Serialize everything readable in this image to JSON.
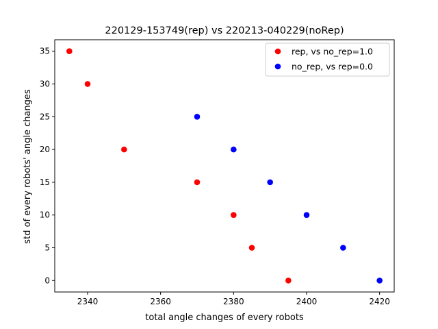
{
  "chart_data": {
    "type": "scatter",
    "title": "220129-153749(rep) vs 220213-040229(noRep)",
    "xlabel": "total angle changes of every robots",
    "ylabel": "std of every robots' angle changes",
    "xlim": [
      2331,
      2424
    ],
    "ylim": [
      -1.75,
      36.75
    ],
    "xticks": [
      2340,
      2360,
      2380,
      2400,
      2420
    ],
    "yticks": [
      0,
      5,
      10,
      15,
      20,
      25,
      30,
      35
    ],
    "grid": false,
    "legend_position": "top-right",
    "series": [
      {
        "name": "rep, vs no_rep=1.0",
        "color": "#ff0000",
        "points": [
          {
            "x": 2335,
            "y": 35
          },
          {
            "x": 2340,
            "y": 30
          },
          {
            "x": 2350,
            "y": 20
          },
          {
            "x": 2370,
            "y": 15
          },
          {
            "x": 2380,
            "y": 10
          },
          {
            "x": 2385,
            "y": 5
          },
          {
            "x": 2395,
            "y": 0
          }
        ]
      },
      {
        "name": "no_rep, vs rep=0.0",
        "color": "#0000ff",
        "points": [
          {
            "x": 2370,
            "y": 25
          },
          {
            "x": 2380,
            "y": 20
          },
          {
            "x": 2390,
            "y": 15
          },
          {
            "x": 2400,
            "y": 10
          },
          {
            "x": 2410,
            "y": 5
          },
          {
            "x": 2420,
            "y": 0
          }
        ]
      }
    ]
  }
}
